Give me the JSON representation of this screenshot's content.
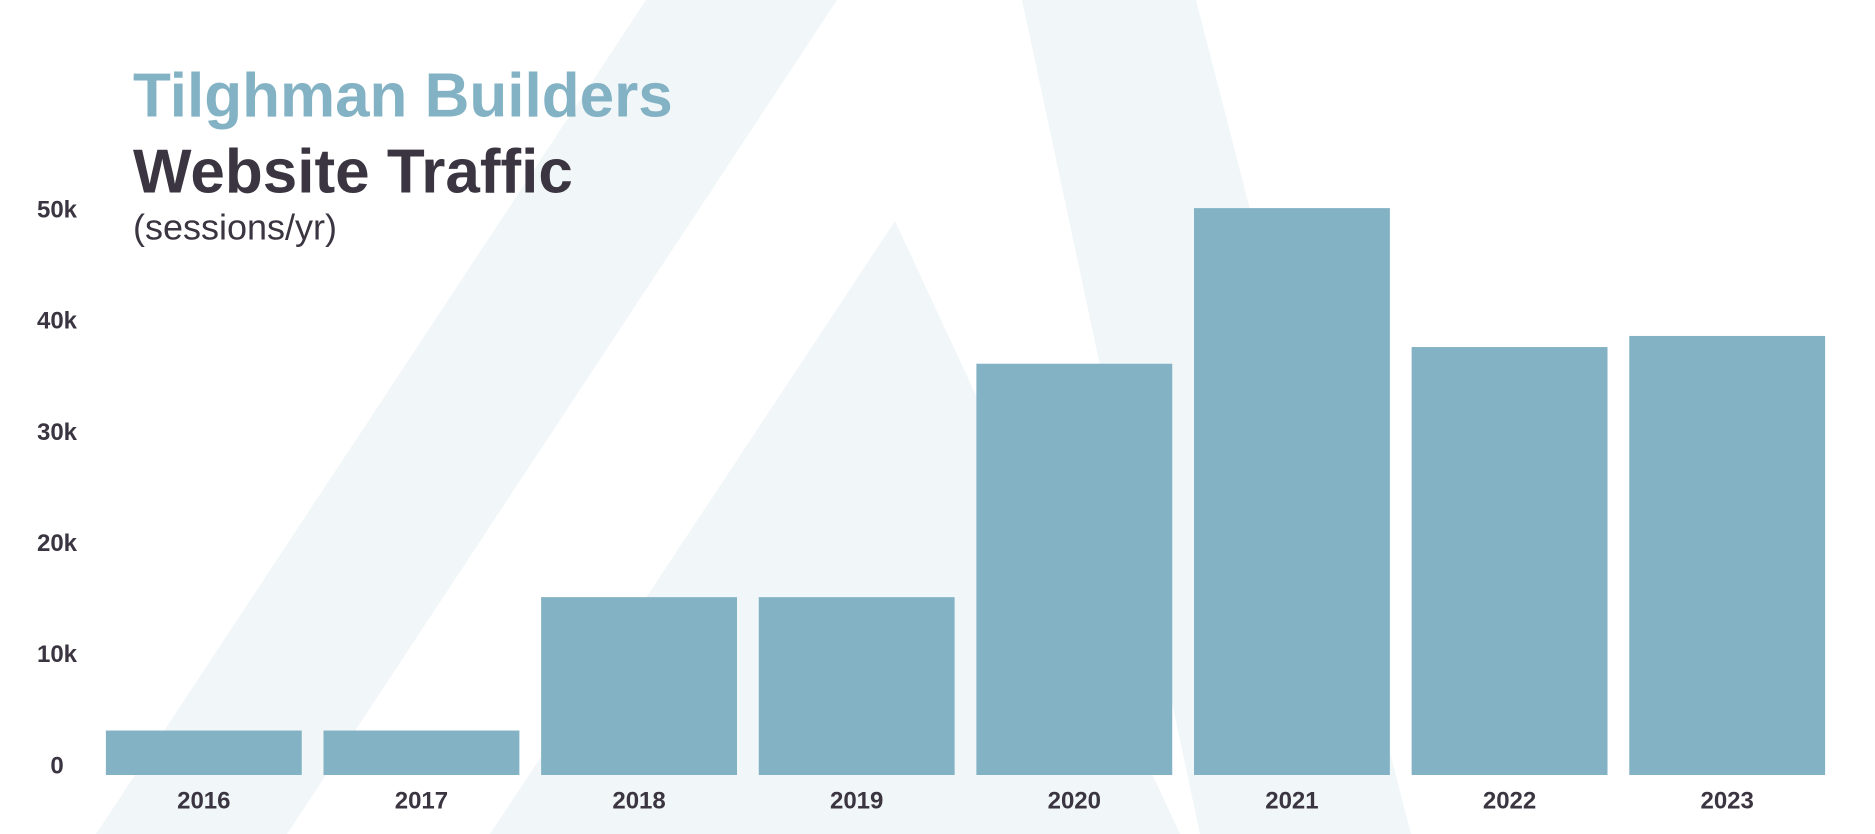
{
  "chart_data": {
    "type": "bar",
    "title": "Tilghman Builders",
    "subtitle": "Website Traffic",
    "y_label": "(sessions/yr)",
    "categories": [
      "2016",
      "2017",
      "2018",
      "2019",
      "2020",
      "2021",
      "2022",
      "2023"
    ],
    "values": [
      4000,
      4000,
      16000,
      16000,
      37000,
      51000,
      38500,
      39500
    ],
    "color": "#82b2c4",
    "ylim": [
      0,
      52000
    ],
    "yticks": [
      0,
      {
        "value": 10000,
        "label": "10k"
      },
      {
        "value": 20000,
        "label": "20k"
      },
      {
        "value": 30000,
        "label": "30k"
      },
      {
        "value": 40000,
        "label": "40k"
      },
      {
        "value": 50000,
        "label": "50k"
      }
    ],
    "grid": false
  }
}
